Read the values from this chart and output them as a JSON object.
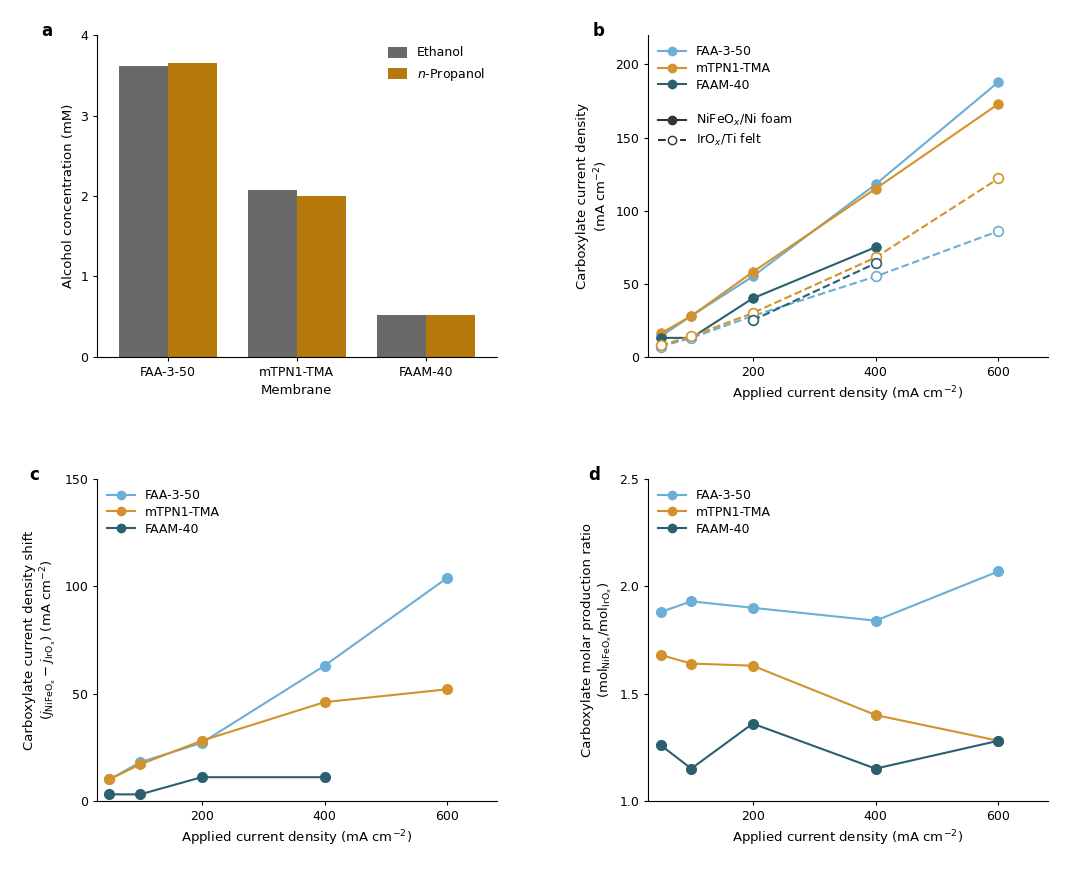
{
  "panel_a": {
    "categories": [
      "FAA-3-50",
      "mTPN1-TMA",
      "FAAM-40"
    ],
    "ethanol": [
      3.62,
      2.07,
      0.52
    ],
    "npropanol": [
      3.65,
      2.0,
      0.52
    ],
    "bar_color_ethanol": "#696969",
    "bar_color_npropanol": "#B5780A",
    "ylabel": "Alcohol concentration (mM)",
    "xlabel": "Membrane",
    "ylim": [
      0,
      4.0
    ],
    "yticks": [
      0,
      1,
      2,
      3,
      4
    ]
  },
  "panel_b": {
    "x": [
      50,
      100,
      200,
      400,
      600
    ],
    "FAA350_NiFeOx": [
      14,
      28,
      55,
      118,
      188
    ],
    "mTPN1_NiFeOx": [
      16,
      28,
      58,
      115,
      173
    ],
    "FAAM40_NiFeOx": [
      13,
      13,
      40,
      75,
      null
    ],
    "FAA350_IrOx": [
      7,
      13,
      28,
      55,
      86
    ],
    "mTPN1_IrOx": [
      8,
      14,
      30,
      68,
      122
    ],
    "FAAM40_IrOx": [
      null,
      null,
      25,
      64,
      null
    ],
    "ylim": [
      0,
      220
    ],
    "yticks": [
      0,
      50,
      100,
      150,
      200
    ],
    "xlim": [
      30,
      680
    ],
    "xticks": [
      200,
      400,
      600
    ]
  },
  "panel_c": {
    "x": [
      50,
      100,
      200,
      400,
      600
    ],
    "FAA350": [
      10,
      18,
      27,
      63,
      104
    ],
    "mTPN1": [
      10,
      17,
      28,
      46,
      52
    ],
    "FAAM40": [
      3,
      3,
      11,
      11,
      null
    ],
    "ylim": [
      0,
      150
    ],
    "yticks": [
      0,
      50,
      100,
      150
    ],
    "xlim": [
      30,
      680
    ],
    "xticks": [
      200,
      400,
      600
    ]
  },
  "panel_d": {
    "x": [
      50,
      100,
      200,
      400,
      600
    ],
    "FAA350": [
      1.88,
      1.93,
      1.9,
      1.84,
      2.07
    ],
    "mTPN1": [
      1.68,
      1.64,
      1.63,
      1.4,
      1.28
    ],
    "FAAM40": [
      1.26,
      1.15,
      1.36,
      1.15,
      1.28
    ],
    "ylim": [
      1.0,
      2.5
    ],
    "yticks": [
      1.0,
      1.5,
      2.0,
      2.5
    ],
    "xlim": [
      30,
      680
    ],
    "xticks": [
      200,
      400,
      600
    ]
  },
  "colors": {
    "FAA350": "#6BAED6",
    "mTPN1": "#D4922B",
    "FAAM40": "#2B6070"
  },
  "label_fontsize": 9.5,
  "tick_fontsize": 9,
  "legend_fontsize": 9,
  "panel_label_fontsize": 12
}
